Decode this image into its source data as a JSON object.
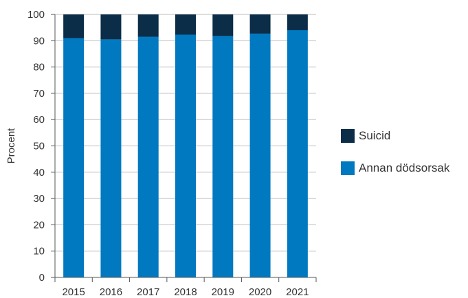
{
  "chart_data": {
    "type": "bar",
    "stacked": true,
    "categories": [
      "2015",
      "2016",
      "2017",
      "2018",
      "2019",
      "2020",
      "2021"
    ],
    "series": [
      {
        "name": "Annan dödsorsak",
        "values": [
          91,
          90.5,
          91.5,
          92.3,
          91.8,
          92.7,
          94
        ],
        "color": "#0079c1"
      },
      {
        "name": "Suicid",
        "values": [
          9,
          9.5,
          8.5,
          7.7,
          8.2,
          7.3,
          6
        ],
        "color": "#0b2d48"
      }
    ],
    "ylabel": "Procent",
    "ylim": [
      0,
      100
    ],
    "yticks": [
      0,
      10,
      20,
      30,
      40,
      50,
      60,
      70,
      80,
      90,
      100
    ],
    "grid": true,
    "legend_position": "right"
  }
}
